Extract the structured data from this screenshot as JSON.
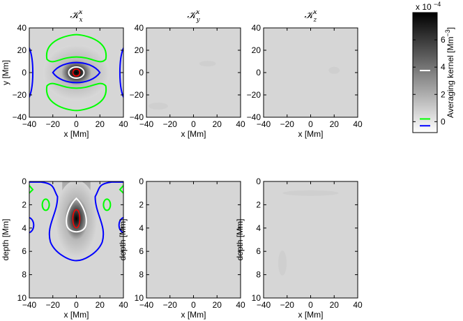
{
  "chart_data": {
    "type": "heatmap",
    "colorbar": {
      "label": "Averaging kernel [Mm",
      "label_sup": "−3",
      "label_end": "]",
      "scale_base": "x 10",
      "scale_exp": "−4",
      "range": [
        -0.8,
        8
      ],
      "ticks": [
        "0",
        "2",
        "4",
        "6"
      ],
      "tick_values": [
        0,
        2,
        4,
        6
      ],
      "colormap": "gray_r",
      "contour_levels": [
        {
          "value": 3.75,
          "color": "#ffffff"
        },
        {
          "value": -0.3,
          "color": "#0000ff"
        },
        {
          "value": 0.2,
          "color": "#00ff00"
        }
      ]
    },
    "panels": [
      {
        "id": "top-left",
        "title_base": "𝒦",
        "title_sub": "x",
        "title_sup": "x",
        "xlabel": "x [Mm]",
        "ylabel": "y [Mm]",
        "xlim": [
          -40,
          40
        ],
        "ylim": [
          -40,
          40
        ],
        "xticks": [
          "−40",
          "−20",
          "0",
          "20",
          "40"
        ],
        "xtick_values": [
          -40,
          -20,
          0,
          20,
          40
        ],
        "yticks": [
          "40",
          "20",
          "0",
          "−20",
          "−40"
        ],
        "ytick_values": [
          40,
          20,
          0,
          -20,
          -40
        ],
        "peak_value": 8,
        "red_contour_value": 6.5
      },
      {
        "id": "top-middle",
        "title_base": "𝒦",
        "title_sub": "y",
        "title_sup": "x",
        "xlabel": "x [Mm]",
        "ylabel": "",
        "xlim": [
          -40,
          40
        ],
        "ylim": [
          -40,
          40
        ],
        "xticks": [
          "−40",
          "−20",
          "0",
          "20",
          "40"
        ],
        "xtick_values": [
          -40,
          -20,
          0,
          20,
          40
        ],
        "yticks": [
          "40",
          "20",
          "0",
          "−20",
          "−40"
        ],
        "ytick_values": [
          40,
          20,
          0,
          -20,
          -40
        ]
      },
      {
        "id": "top-right",
        "title_base": "𝒦",
        "title_sub": "z",
        "title_sup": "x",
        "xlabel": "x [Mm]",
        "ylabel": "",
        "xlim": [
          -40,
          40
        ],
        "ylim": [
          -40,
          40
        ],
        "xticks": [
          "−40",
          "−20",
          "0",
          "20",
          "40"
        ],
        "xtick_values": [
          -40,
          -20,
          0,
          20,
          40
        ],
        "yticks": [
          "40",
          "20",
          "0",
          "−20",
          "−40"
        ],
        "ytick_values": [
          40,
          20,
          0,
          -20,
          -40
        ]
      },
      {
        "id": "bottom-left",
        "title_base": "",
        "title_sub": "",
        "title_sup": "",
        "xlabel": "x [Mm]",
        "ylabel": "depth [Mm]",
        "xlim": [
          -40,
          40
        ],
        "ylim": [
          0,
          10
        ],
        "xticks": [
          "−40",
          "−20",
          "0",
          "20",
          "40"
        ],
        "xtick_values": [
          -40,
          -20,
          0,
          20,
          40
        ],
        "yticks": [
          "0",
          "2",
          "4",
          "6",
          "8",
          "10"
        ],
        "ytick_values": [
          0,
          2,
          4,
          6,
          8,
          10
        ],
        "peak_depth": 3.2,
        "peak_value": 8
      },
      {
        "id": "bottom-middle",
        "title_base": "",
        "title_sub": "",
        "title_sup": "",
        "xlabel": "x [Mm]",
        "ylabel": "depth [Mm]",
        "xlim": [
          -40,
          40
        ],
        "ylim": [
          0,
          10
        ],
        "xticks": [
          "−40",
          "−20",
          "0",
          "20",
          "40"
        ],
        "xtick_values": [
          -40,
          -20,
          0,
          20,
          40
        ],
        "yticks": [
          "0",
          "2",
          "4",
          "6",
          "8",
          "10"
        ],
        "ytick_values": [
          0,
          2,
          4,
          6,
          8,
          10
        ]
      },
      {
        "id": "bottom-right",
        "title_base": "",
        "title_sub": "",
        "title_sup": "",
        "xlabel": "x [Mm]",
        "ylabel": "depth [Mm]",
        "xlim": [
          -40,
          40
        ],
        "ylim": [
          0,
          10
        ],
        "xticks": [
          "−40",
          "−20",
          "0",
          "20",
          "40"
        ],
        "xtick_values": [
          -40,
          -20,
          0,
          20,
          40
        ],
        "yticks": [
          "0",
          "2",
          "4",
          "6",
          "8",
          "10"
        ],
        "ytick_values": [
          0,
          2,
          4,
          6,
          8,
          10
        ]
      }
    ]
  }
}
